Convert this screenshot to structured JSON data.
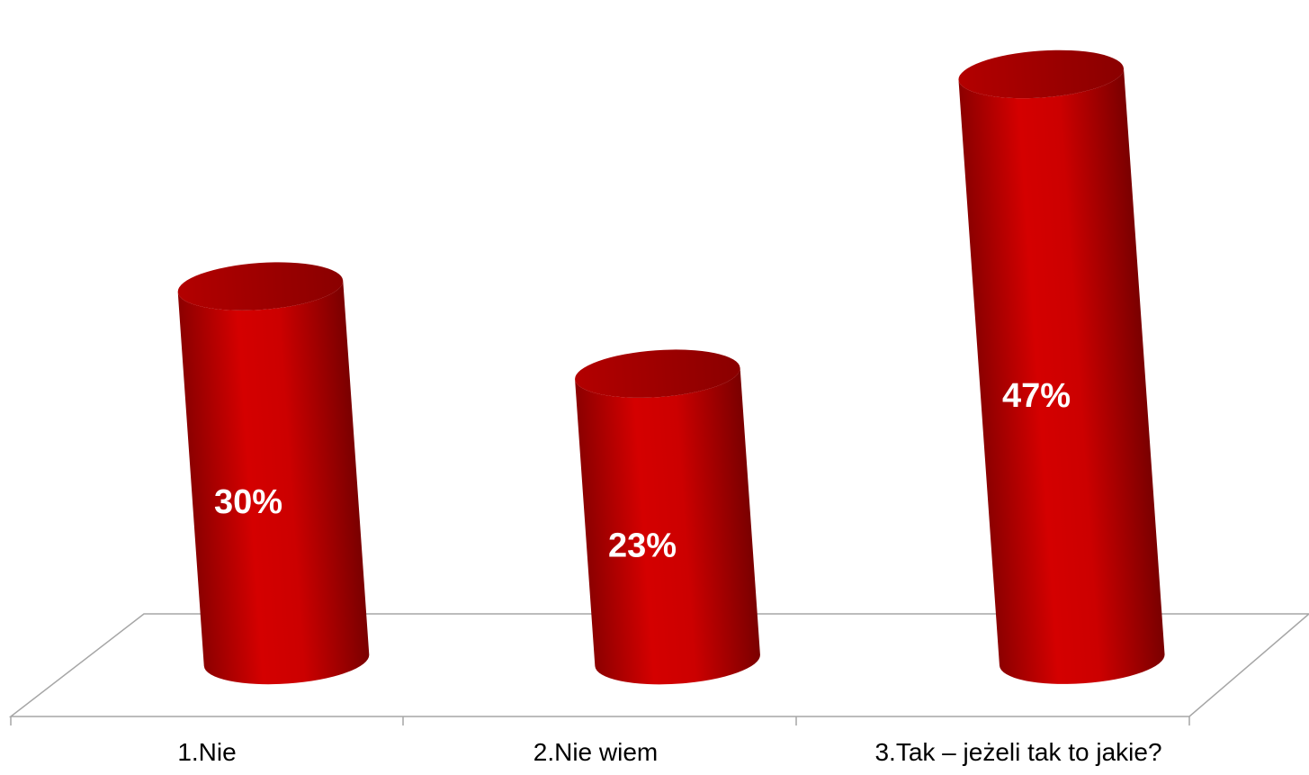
{
  "chart_data": {
    "type": "bar",
    "style": "3d-cylinder",
    "title": "",
    "xlabel": "",
    "ylabel": "",
    "categories": [
      "1.Nie",
      "2.Nie wiem",
      "3.Tak – jeżeli tak to jakie?"
    ],
    "values": [
      30,
      23,
      47
    ],
    "data_labels": [
      "30%",
      "23%",
      "47%"
    ],
    "value_unit": "%",
    "ylim": [
      0,
      50
    ],
    "grid": false,
    "legend": "none",
    "colors": {
      "bar_light": "#d40000",
      "bar_dark": "#8c0000",
      "bar_top": "#a00000",
      "floor_line": "#a6a6a6"
    }
  }
}
